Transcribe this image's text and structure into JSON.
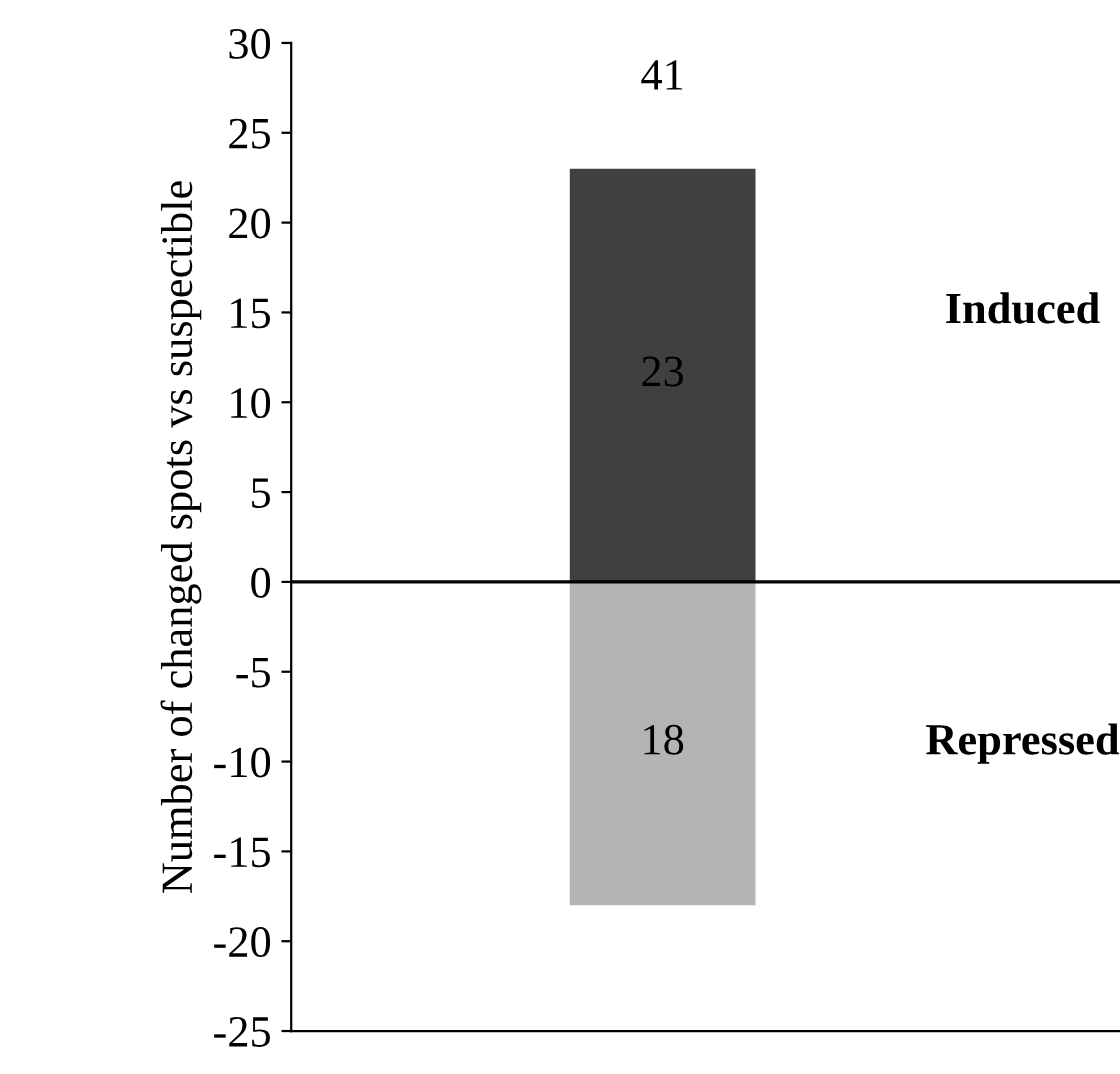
{
  "chart_data": {
    "type": "bar",
    "ylabel": "Number of changed spots vs suspectible",
    "categories": [
      null
    ],
    "stacked": true,
    "series": [
      {
        "type": "bar",
        "color": "#404040",
        "values": [
          23
        ],
        "value_labels": [
          "23"
        ]
      },
      {
        "type": "bar",
        "color": "#b4b4b4",
        "values": [
          -18
        ]
      }
    ],
    "annotations": [
      "41",
      "Induced",
      "18",
      "Repressed"
    ],
    "ylim": [
      -25,
      30
    ],
    "yticks": [
      -25,
      -20,
      -15,
      -10,
      -5,
      0,
      5,
      10,
      15,
      20,
      25,
      30
    ],
    "ref_lines": [
      {
        "axis": "y",
        "value": 0,
        "color": "#000000"
      }
    ],
    "grid": false,
    "legend": false
  }
}
